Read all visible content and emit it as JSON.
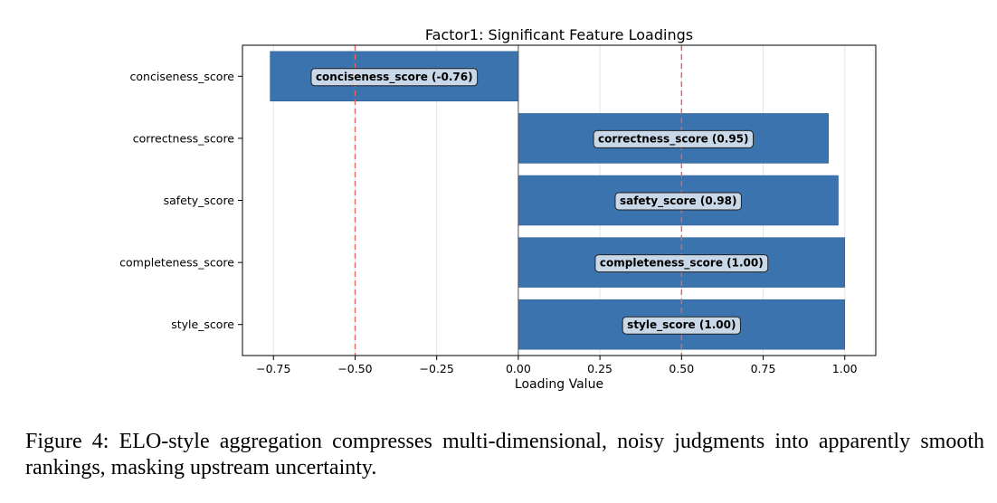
{
  "chart_data": {
    "type": "bar",
    "orientation": "horizontal",
    "title": "Factor1: Significant Feature Loadings",
    "xlabel": "Loading Value",
    "ylabel": "",
    "categories": [
      "conciseness_score",
      "correctness_score",
      "safety_score",
      "completeness_score",
      "style_score"
    ],
    "values": [
      -0.76,
      0.95,
      0.98,
      1.0,
      1.0
    ],
    "bar_labels": [
      "conciseness_score (-0.76)",
      "correctness_score (0.95)",
      "safety_score (0.98)",
      "completeness_score (1.00)",
      "style_score (1.00)"
    ],
    "xlim": [
      -0.845,
      1.095
    ],
    "xticks": [
      -0.75,
      -0.5,
      -0.25,
      0.0,
      0.25,
      0.5,
      0.75,
      1.0
    ],
    "xtick_labels": [
      "−0.75",
      "−0.50",
      "−0.25",
      "0.00",
      "0.25",
      "0.50",
      "0.75",
      "1.00"
    ],
    "threshold_lines": [
      -0.5,
      0.5
    ],
    "grid": "x",
    "colors": {
      "bar": "#3a73ad",
      "threshold": "#e06666",
      "grid": "#e6e6e6",
      "zero_line": "#555555"
    }
  },
  "caption": "Figure 4: ELO-style aggregation compresses multi-dimensional, noisy judgments into apparently smooth rankings, masking upstream uncertainty."
}
